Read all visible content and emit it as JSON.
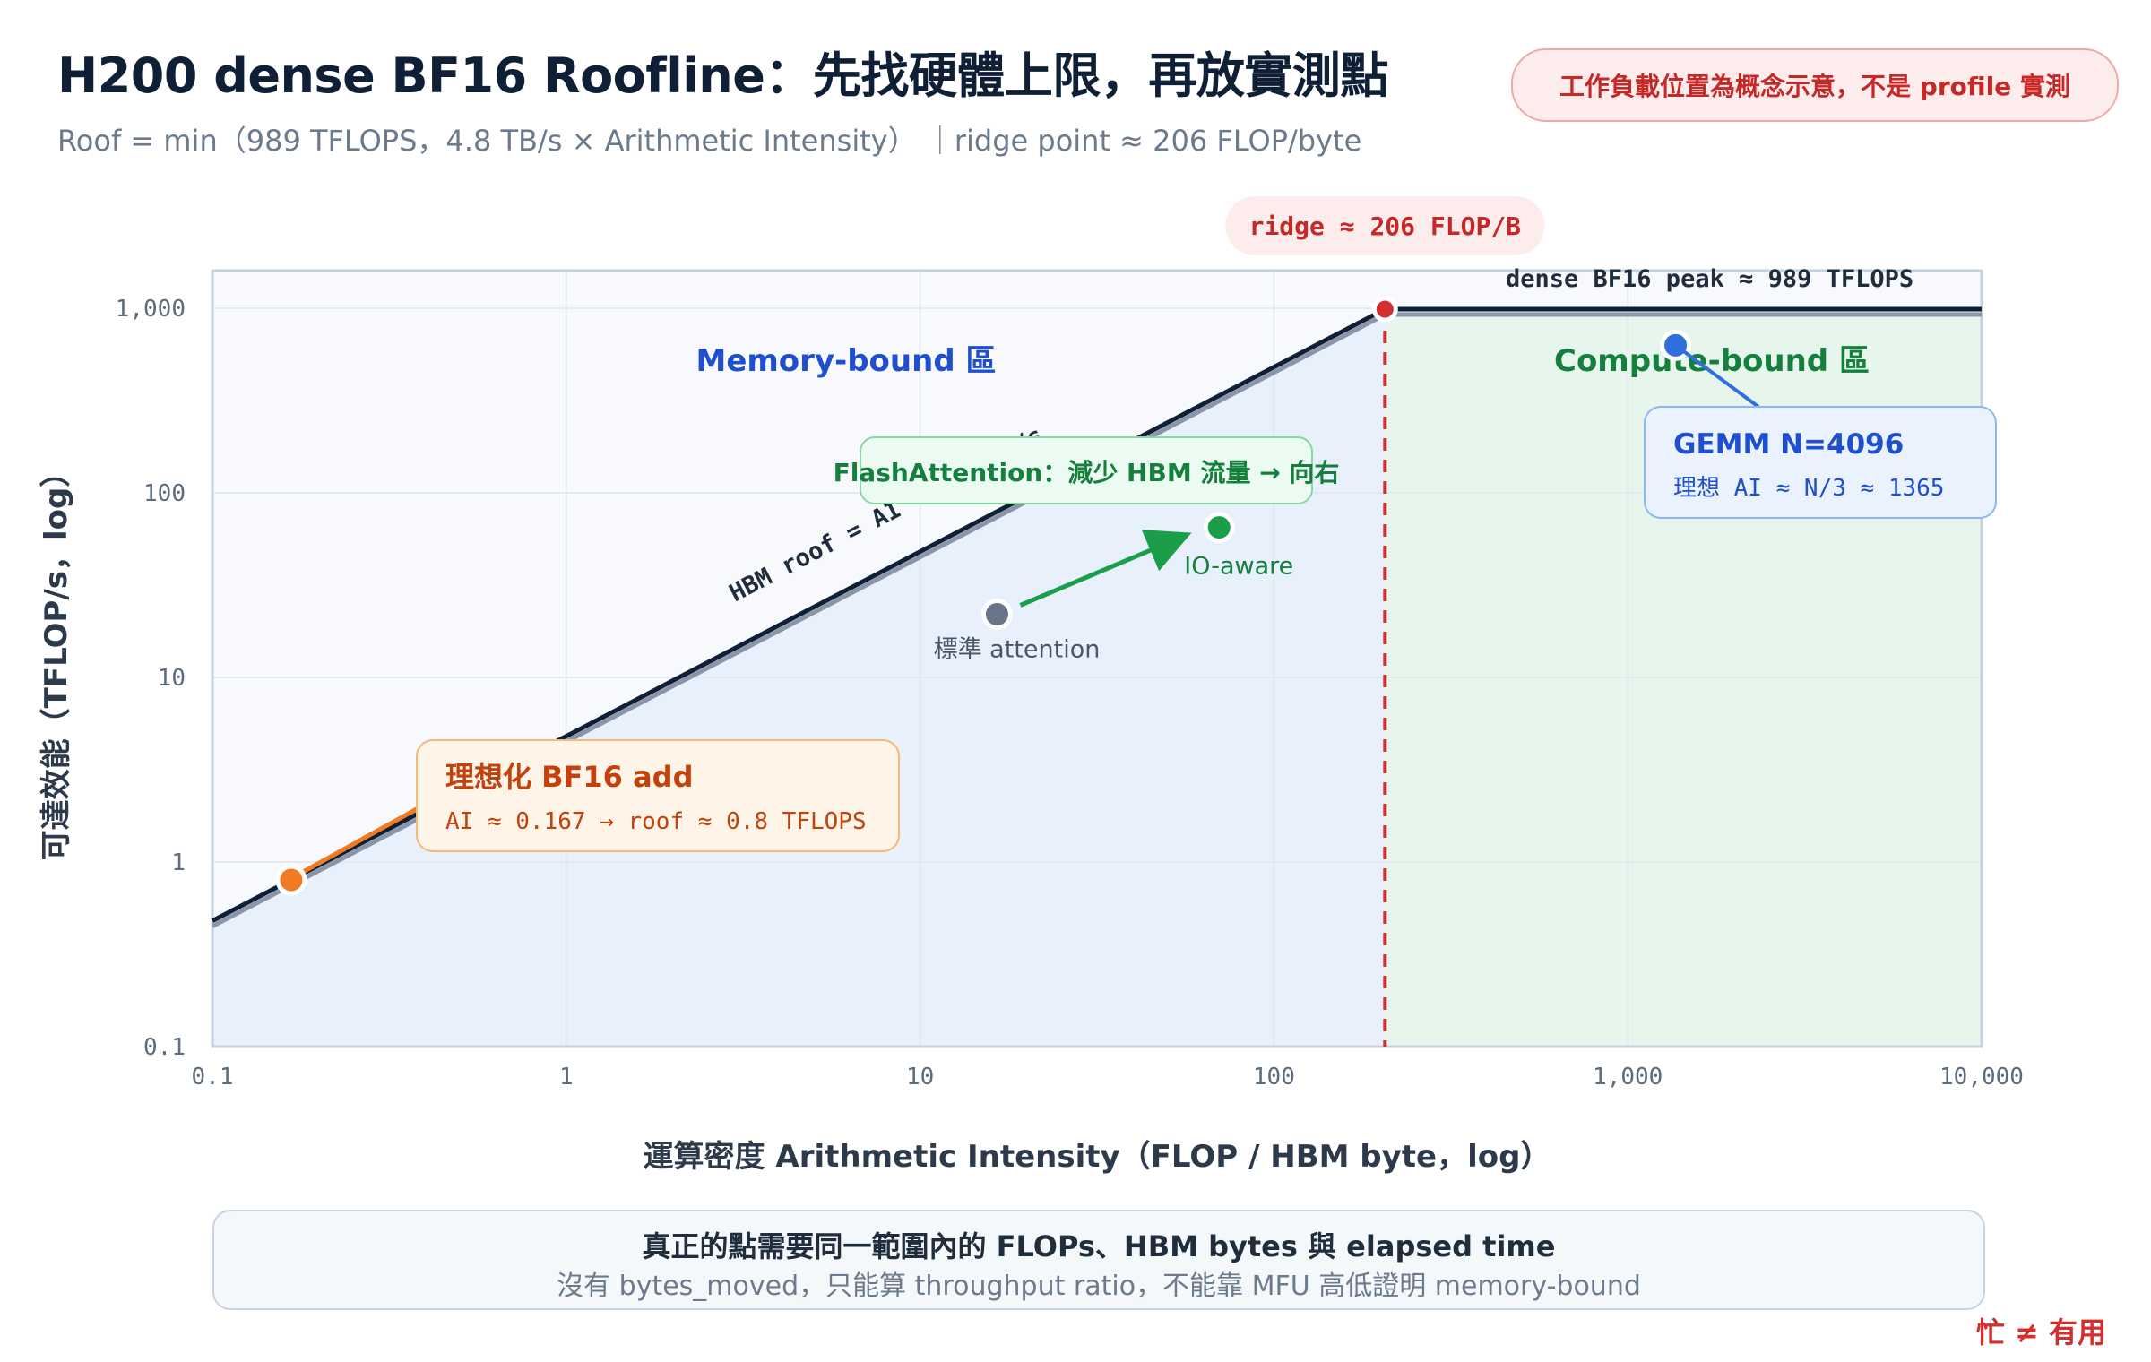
{
  "header": {
    "title": "H200 dense BF16 Roofline：先找硬體上限，再放實測點",
    "subtitle": "Roof = min（989 TFLOPS，4.8 TB/s × Arithmetic Intensity） ｜ridge point ≈ 206 FLOP/byte",
    "badge": "工作負載位置為概念示意，不是 profile 實測"
  },
  "footer": {
    "main": "真正的點需要同一範圍內的 FLOPs、HBM bytes 與 elapsed time",
    "sub": "沒有 bytes_moved，只能算 throughput ratio，不能靠 MFU 高低證明 memory-bound",
    "corner": "忙 ≠ 有用"
  },
  "colors": {
    "memory_region": "#e8f0fb",
    "compute_region": "#e6f6ec",
    "roof": "#0f1f35",
    "ridge": "#d32f2f",
    "orange": "#f07b22",
    "green": "#1a9e4a",
    "blue": "#2f6fe0",
    "gray": "#6b7588"
  },
  "chart_data": {
    "type": "line",
    "scale": "log-log",
    "xlabel": "運算密度 Arithmetic Intensity（FLOP / HBM byte，log）",
    "ylabel": "可達效能（TFLOP/s，log）",
    "xlim": [
      0.1,
      10000
    ],
    "ylim": [
      0.1,
      1600
    ],
    "x_ticks": [
      0.1,
      1,
      10,
      100,
      1000,
      10000
    ],
    "x_tick_labels": [
      "0.1",
      "1",
      "10",
      "100",
      "1,000",
      "10,000"
    ],
    "y_ticks": [
      0.1,
      1,
      10,
      100,
      1000
    ],
    "y_tick_labels": [
      "0.1",
      "1",
      "10",
      "100",
      "1,000"
    ],
    "grid": true,
    "roof": {
      "peak_tflops": 989,
      "bandwidth_tb_s": 4.8,
      "ridge_ai": 206,
      "peak_label": "dense BF16 peak ≈ 989 TFLOPS",
      "slope_label": "HBM roof = AI × 4.8 TB/s",
      "ridge_label": "ridge ≈ 206 FLOP/B"
    },
    "regions": {
      "memory_label": "Memory-bound 區",
      "compute_label": "Compute-bound 區"
    },
    "points": [
      {
        "name": "bf16-add",
        "x": 0.167,
        "y": 0.8,
        "color": "#f07b22"
      },
      {
        "name": "standard-attention",
        "x": 16.5,
        "y": 22,
        "color": "#6b7588",
        "label": "標準 attention"
      },
      {
        "name": "io-aware",
        "x": 70,
        "y": 65,
        "color": "#1a9e4a",
        "label": "IO-aware"
      },
      {
        "name": "gemm",
        "x": 1365,
        "y": 630,
        "color": "#2f6fe0"
      },
      {
        "name": "ridge",
        "x": 206,
        "y": 989,
        "color": "#d32f2f"
      }
    ],
    "callouts": {
      "add_title": "理想化 BF16 add",
      "add_text": "AI ≈ 0.167 → roof ≈ 0.8 TFLOPS",
      "flash_text": "FlashAttention：減少 HBM 流量 → 向右",
      "gemm_title": "GEMM N=4096",
      "gemm_text": "理想 AI ≈ N/3 ≈ 1365"
    }
  }
}
